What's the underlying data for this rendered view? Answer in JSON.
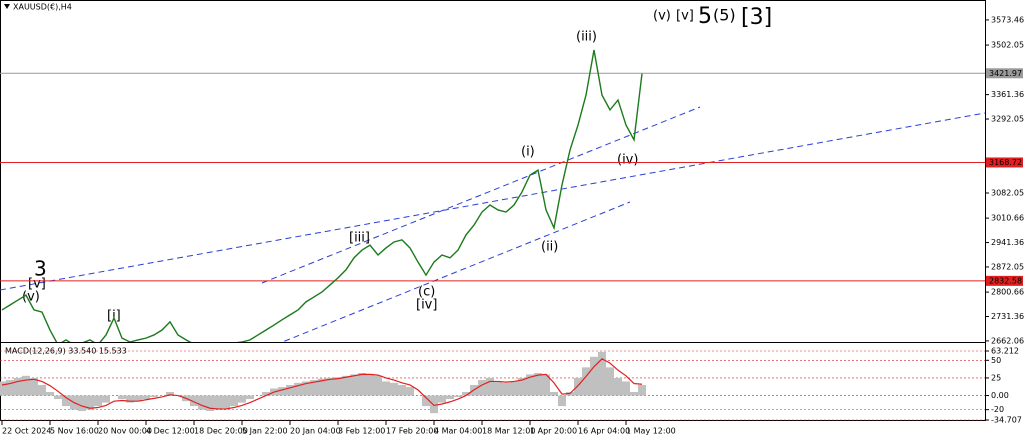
{
  "chart_data": [
    {
      "type": "line",
      "title": "XAUUSD(€),H4",
      "categories": [
        "22 Oct 2024",
        null,
        null,
        null,
        null,
        null,
        "5 Nov 16:00",
        null,
        null,
        null,
        null,
        null,
        "20 Nov 00:00",
        null,
        null,
        null,
        null,
        null,
        "4 Dec 12:00",
        null,
        null,
        null,
        null,
        null,
        "18 Dec 20:00",
        null,
        null,
        null,
        null,
        null,
        "5 Jan 22:00",
        null,
        null,
        null,
        null,
        null,
        "20 Jan 04:00",
        null,
        null,
        null,
        null,
        null,
        "3 Feb 12:00",
        null,
        null,
        null,
        null,
        null,
        "17 Feb 20:00",
        null,
        null,
        null,
        null,
        null,
        "4 Mar 04:00",
        null,
        null,
        null,
        null,
        null,
        "18 Mar 12:00",
        null,
        null,
        null,
        null,
        null,
        "1 Apr 20:00",
        null,
        null,
        null,
        null,
        null,
        "16 Apr 04:00",
        null,
        null,
        null,
        null,
        null,
        "1 May 12:00",
        null,
        null
      ],
      "series": [
        {
          "color": "#1b7a1b",
          "values": [
            2750,
            2764,
            2778,
            2792,
            2750,
            2744,
            2693,
            2651,
            2665,
            2651,
            2656,
            2665,
            2651,
            2679,
            2727,
            2670,
            2659,
            2665,
            2670,
            2679,
            2693,
            2716,
            2679,
            2665,
            2653,
            2651,
            2648,
            2651,
            2653,
            2656,
            2659,
            2665,
            2679,
            2693,
            2707,
            2722,
            2736,
            2750,
            2773,
            2787,
            2801,
            2821,
            2841,
            2864,
            2898,
            2920,
            2934,
            2906,
            2926,
            2943,
            2949,
            2926,
            2886,
            2849,
            2886,
            2906,
            2898,
            2920,
            2963,
            2991,
            3028,
            3048,
            3034,
            3028,
            3048,
            3085,
            3133,
            3147,
            3034,
            2983,
            3105,
            3204,
            3275,
            3360,
            3488,
            3360,
            3318,
            3346,
            3275,
            3233,
            3421
          ]
        }
      ],
      "ylim": [
        2659,
        3630
      ],
      "yticks": [
        3573.46,
        3502.05,
        3361.36,
        3292.05,
        3082.05,
        3010.66,
        2941.36,
        2872.05,
        2800.66,
        2731.36,
        2662.06
      ],
      "hlines": [
        {
          "value": 3421.97,
          "color": "#9a9a9a"
        },
        {
          "value": 3168.72,
          "color": "#e02020"
        },
        {
          "value": 2832.58,
          "color": "#e02020"
        }
      ],
      "annotations": [
        "3",
        "[v]",
        "(v)",
        "[i]",
        "[iii]",
        "(c)",
        "[iv]",
        "(i)",
        "(ii)",
        "(iii)",
        "(iv)",
        "(v)",
        "[v]",
        "5",
        "(5)",
        "[3]"
      ]
    },
    {
      "type": "bar",
      "title": "MACD(12,26,9) 33.540 15.533",
      "series": [
        {
          "color": "#c0c0c0",
          "values": [
            20,
            22,
            25,
            28,
            25,
            15,
            5,
            -5,
            -15,
            -20,
            -22,
            -20,
            -15,
            -10,
            0,
            -5,
            -10,
            -8,
            -5,
            -2,
            0,
            5,
            0,
            -8,
            -15,
            -20,
            -22,
            -20,
            -18,
            -15,
            -10,
            -5,
            0,
            5,
            10,
            12,
            15,
            18,
            20,
            22,
            24,
            25,
            26,
            28,
            30,
            32,
            30,
            28,
            20,
            18,
            15,
            12,
            0,
            -15,
            -25,
            -10,
            -5,
            -2,
            5,
            15,
            22,
            25,
            20,
            18,
            20,
            25,
            30,
            32,
            30,
            5,
            -15,
            5,
            25,
            40,
            55,
            62,
            40,
            25,
            20,
            5,
            15
          ]
        },
        {
          "type": "line",
          "color": "#e02020",
          "values": [
            15,
            17,
            20,
            22,
            23,
            20,
            14,
            6,
            -3,
            -10,
            -15,
            -18,
            -17,
            -14,
            -8,
            -7,
            -8,
            -8,
            -6,
            -4,
            -2,
            1,
            0,
            -4,
            -9,
            -14,
            -18,
            -19,
            -19,
            -17,
            -14,
            -10,
            -5,
            0,
            5,
            8,
            11,
            14,
            17,
            19,
            21,
            23,
            24,
            26,
            28,
            30,
            30,
            29,
            25,
            22,
            18,
            15,
            8,
            -3,
            -14,
            -12,
            -9,
            -5,
            0,
            8,
            15,
            20,
            20,
            19,
            20,
            22,
            26,
            29,
            30,
            18,
            2,
            3,
            14,
            27,
            41,
            52,
            46,
            36,
            28,
            17,
            16
          ]
        }
      ],
      "ylim": [
        -34.707,
        63.212
      ],
      "yticks": [
        63.212,
        50,
        25,
        {
          "value": 0,
          "label": "0.00"
        },
        -20,
        -34.707
      ],
      "levels_color": "#e02020"
    }
  ]
}
